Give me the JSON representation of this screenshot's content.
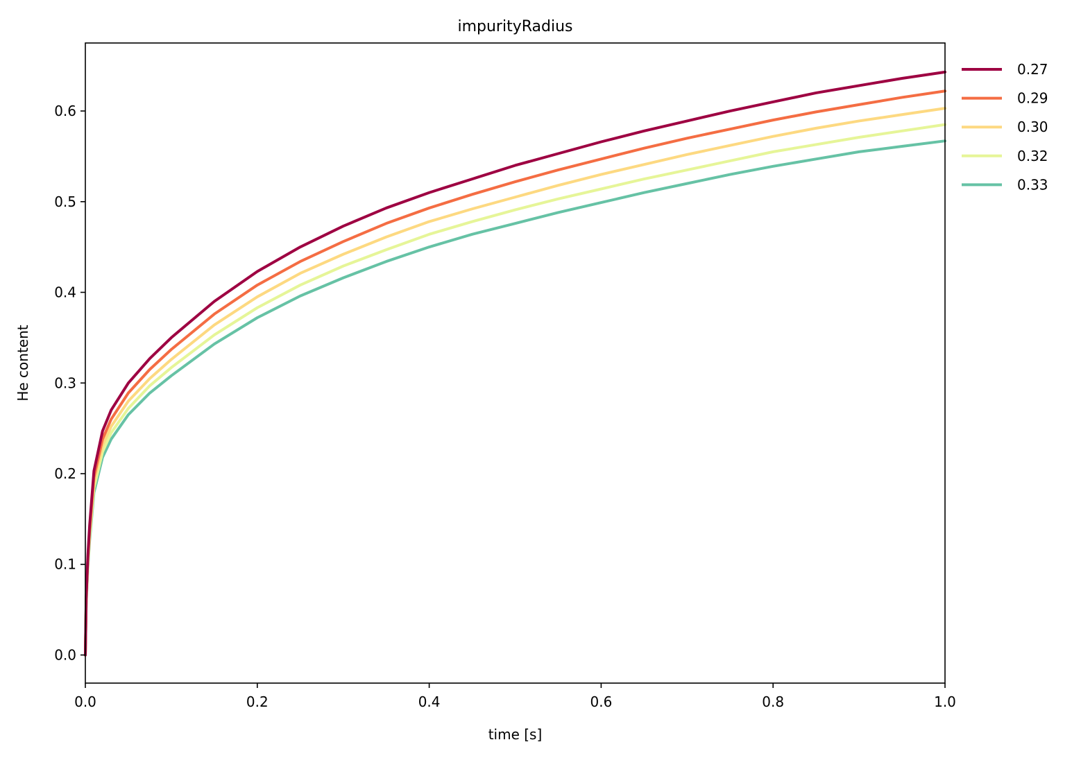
{
  "chart_data": {
    "type": "line",
    "title": "impurityRadius",
    "xlabel": "time [s]",
    "ylabel": "He content",
    "xlim": [
      0.0,
      1.0
    ],
    "ylim": [
      -0.031,
      0.675
    ],
    "xticks": [
      0.0,
      0.2,
      0.4,
      0.6,
      0.8,
      1.0
    ],
    "xtick_labels": [
      "0.0",
      "0.2",
      "0.4",
      "0.6",
      "0.8",
      "1.0"
    ],
    "yticks": [
      0.0,
      0.1,
      0.2,
      0.3,
      0.4,
      0.5,
      0.6
    ],
    "ytick_labels": [
      "0.0",
      "0.1",
      "0.2",
      "0.3",
      "0.4",
      "0.5",
      "0.6"
    ],
    "grid": false,
    "legend_position": "outside top-right",
    "x": [
      0.0,
      0.001,
      0.003,
      0.005,
      0.01,
      0.02,
      0.03,
      0.05,
      0.075,
      0.1,
      0.15,
      0.2,
      0.25,
      0.3,
      0.35,
      0.4,
      0.45,
      0.5,
      0.55,
      0.6,
      0.65,
      0.7,
      0.75,
      0.8,
      0.85,
      0.9,
      0.95,
      1.0
    ],
    "series": [
      {
        "name": "0.27",
        "color": "#9e0142",
        "values": [
          0.0,
          0.064,
          0.111,
          0.143,
          0.203,
          0.247,
          0.27,
          0.3,
          0.327,
          0.35,
          0.39,
          0.423,
          0.45,
          0.473,
          0.493,
          0.51,
          0.525,
          0.54,
          0.553,
          0.566,
          0.578,
          0.589,
          0.6,
          0.61,
          0.62,
          0.628,
          0.636,
          0.643
        ]
      },
      {
        "name": "0.29",
        "color": "#f46d43",
        "values": [
          0.0,
          0.062,
          0.107,
          0.138,
          0.196,
          0.238,
          0.26,
          0.289,
          0.315,
          0.337,
          0.376,
          0.408,
          0.434,
          0.456,
          0.476,
          0.493,
          0.508,
          0.522,
          0.535,
          0.547,
          0.559,
          0.57,
          0.58,
          0.59,
          0.599,
          0.607,
          0.615,
          0.622
        ]
      },
      {
        "name": "0.30",
        "color": "#fdd981",
        "values": [
          0.0,
          0.06,
          0.104,
          0.134,
          0.19,
          0.231,
          0.252,
          0.28,
          0.305,
          0.326,
          0.364,
          0.395,
          0.421,
          0.442,
          0.461,
          0.478,
          0.492,
          0.505,
          0.518,
          0.53,
          0.541,
          0.552,
          0.562,
          0.572,
          0.581,
          0.589,
          0.596,
          0.603
        ]
      },
      {
        "name": "0.32",
        "color": "#e6f598",
        "values": [
          0.0,
          0.058,
          0.101,
          0.13,
          0.184,
          0.224,
          0.245,
          0.272,
          0.297,
          0.317,
          0.353,
          0.383,
          0.408,
          0.429,
          0.447,
          0.464,
          0.478,
          0.491,
          0.503,
          0.514,
          0.525,
          0.535,
          0.545,
          0.555,
          0.563,
          0.571,
          0.578,
          0.585
        ]
      },
      {
        "name": "0.33",
        "color": "#66c2a5",
        "values": [
          0.0,
          0.057,
          0.098,
          0.126,
          0.179,
          0.218,
          0.238,
          0.265,
          0.289,
          0.308,
          0.343,
          0.372,
          0.396,
          0.416,
          0.434,
          0.45,
          0.464,
          0.476,
          0.488,
          0.499,
          0.51,
          0.52,
          0.53,
          0.539,
          0.547,
          0.555,
          0.561,
          0.567
        ]
      }
    ]
  }
}
